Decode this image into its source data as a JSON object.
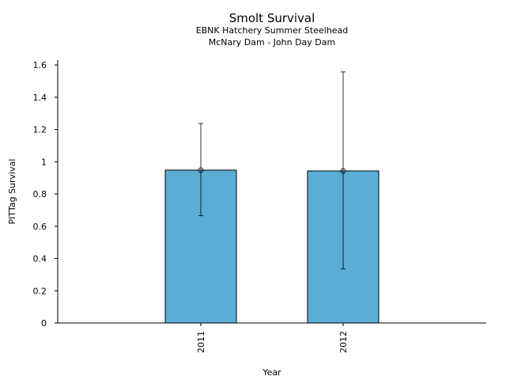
{
  "chart_data": {
    "type": "bar",
    "title": "Smolt Survival",
    "subtitle_lines": [
      "EBNK Hatchery Summer Steelhead",
      "McNary Dam - John Day Dam"
    ],
    "xlabel": "Year",
    "ylabel": "PITTag Survival",
    "categories": [
      "2011",
      "2012"
    ],
    "values": [
      0.948,
      0.943
    ],
    "error_low": [
      0.665,
      0.335
    ],
    "error_high": [
      1.237,
      1.557
    ],
    "ylim": [
      0,
      1.63
    ],
    "yticks": [
      0,
      0.2,
      0.4,
      0.6,
      0.8,
      1,
      1.2,
      1.4,
      1.6
    ],
    "ytick_labels": [
      "0",
      "0.2",
      "0.4",
      "0.6",
      "0.8",
      "1",
      "1.2",
      "1.4",
      "1.6"
    ],
    "bar_color": "#5BADD6",
    "grid": false,
    "legend": "none"
  }
}
